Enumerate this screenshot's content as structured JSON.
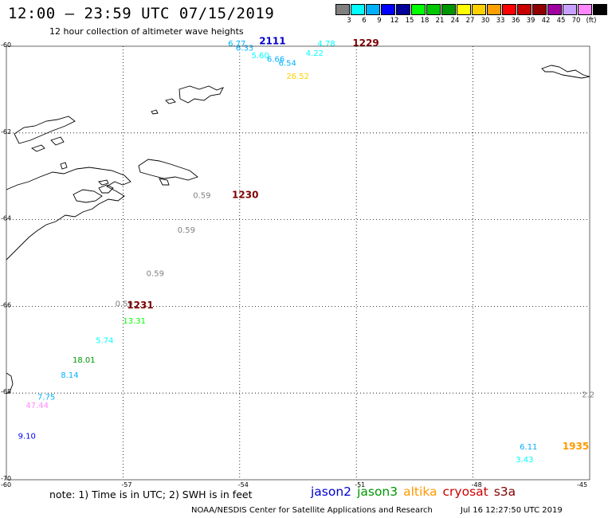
{
  "header": {
    "title": "12:00 – 23:59 UTC 07/15/2019",
    "subtitle": "12 hour collection of altimeter wave heights"
  },
  "colorbar": {
    "colors": [
      "#808080",
      "#00ffff",
      "#00b0ff",
      "#0000ff",
      "#00009a",
      "#00ff00",
      "#00c800",
      "#009600",
      "#ffff00",
      "#ffd000",
      "#ffa000",
      "#ff0000",
      "#c80000",
      "#900000",
      "#a000a0",
      "#c8a0ff",
      "#ff88ff",
      "#000000"
    ],
    "labels": [
      "3",
      "6",
      "9",
      "12",
      "15",
      "18",
      "21",
      "24",
      "27",
      "30",
      "33",
      "36",
      "39",
      "42",
      "45",
      "70",
      "(ft)"
    ]
  },
  "axes": {
    "lat_labels": [
      "-60",
      "-62",
      "-64",
      "-66",
      "-68",
      "-70"
    ],
    "lon_labels": [
      "-60",
      "-57",
      "-54",
      "-51",
      "-48",
      "-45"
    ]
  },
  "measurements": [
    {
      "text": "6.77",
      "lon": -54.3,
      "lat": -60.0,
      "color": "#00b0ff"
    },
    {
      "text": "6.33",
      "lon": -54.1,
      "lat": -60.1,
      "color": "#00b0ff"
    },
    {
      "text": "5.60",
      "lon": -53.7,
      "lat": -60.28,
      "color": "#00ffff"
    },
    {
      "text": "6.66",
      "lon": -53.3,
      "lat": -60.36,
      "color": "#00b0ff"
    },
    {
      "text": "6.54",
      "lon": -53.0,
      "lat": -60.45,
      "color": "#00b0ff"
    },
    {
      "text": "26.52",
      "lon": -52.8,
      "lat": -60.75,
      "color": "#ffd000"
    },
    {
      "text": "4.78",
      "lon": -52.0,
      "lat": -60.0,
      "color": "#00ffff"
    },
    {
      "text": "4.22",
      "lon": -52.3,
      "lat": -60.22,
      "color": "#00ffff"
    },
    {
      "text": "0.59",
      "lon": -55.2,
      "lat": -63.5,
      "color": "#808080"
    },
    {
      "text": "0.59",
      "lon": -55.6,
      "lat": -64.3,
      "color": "#808080"
    },
    {
      "text": "0.59",
      "lon": -56.4,
      "lat": -65.3,
      "color": "#808080"
    },
    {
      "text": "0.59",
      "lon": -57.2,
      "lat": -66.0,
      "color": "#808080"
    },
    {
      "text": "13.31",
      "lon": -57.0,
      "lat": -66.4,
      "color": "#00ff00"
    },
    {
      "text": "5.74",
      "lon": -57.7,
      "lat": -66.85,
      "color": "#00ffff"
    },
    {
      "text": "18.01",
      "lon": -58.3,
      "lat": -67.3,
      "color": "#009600"
    },
    {
      "text": "8.14",
      "lon": -58.6,
      "lat": -67.65,
      "color": "#00b0ff"
    },
    {
      "text": "7.75",
      "lon": -59.2,
      "lat": -68.15,
      "color": "#00b0ff"
    },
    {
      "text": "47.44",
      "lon": -59.5,
      "lat": -68.35,
      "color": "#ff88ff"
    },
    {
      "text": "9.10",
      "lon": -59.7,
      "lat": -69.05,
      "color": "#0000ff"
    },
    {
      "text": "2.2",
      "lon": -45.2,
      "lat": -68.1,
      "color": "#808080"
    },
    {
      "text": "6.11",
      "lon": -46.8,
      "lat": -69.3,
      "color": "#00b0ff"
    },
    {
      "text": "3.43",
      "lon": -46.9,
      "lat": -69.6,
      "color": "#00ffff"
    }
  ],
  "times": [
    {
      "text": "2111",
      "lon": -53.5,
      "lat": -59.95,
      "color": "#0000cc"
    },
    {
      "text": "1229",
      "lon": -51.1,
      "lat": -60.0,
      "color": "#800000"
    },
    {
      "text": "1230",
      "lon": -54.2,
      "lat": -63.5,
      "color": "#800000"
    },
    {
      "text": "1231",
      "lon": -56.9,
      "lat": -66.05,
      "color": "#800000"
    },
    {
      "text": "1935",
      "lon": -45.7,
      "lat": -69.3,
      "color": "#ff9900"
    }
  ],
  "note": "note: 1) Time is in UTC; 2) SWH is in feet",
  "legend": [
    {
      "label": "jason2",
      "color": "#0000cc"
    },
    {
      "label": "jason3",
      "color": "#009600"
    },
    {
      "label": "altika",
      "color": "#ff9900"
    },
    {
      "label": "cryosat",
      "color": "#cc0000"
    },
    {
      "label": "s3a",
      "color": "#800000"
    }
  ],
  "footer": "NOAA/NESDIS Center for Satellite Applications and Research",
  "footer_time": "Jul 16 12:27:50 UTC 2019"
}
